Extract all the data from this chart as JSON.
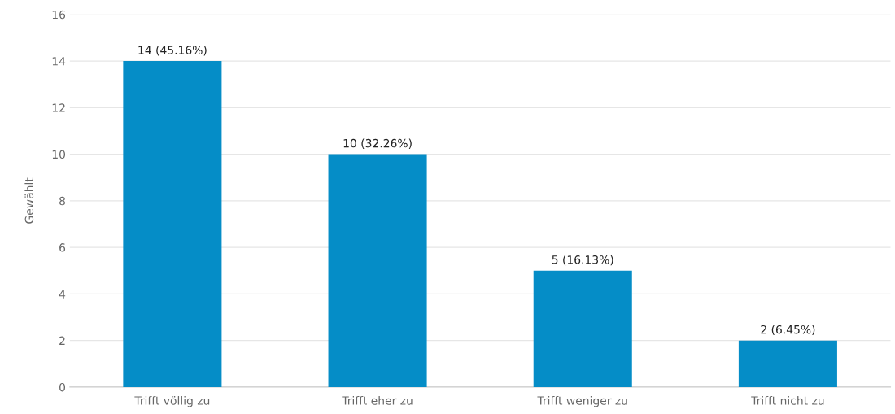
{
  "chart_data": {
    "type": "bar",
    "ylabel": "Gewählt",
    "categories": [
      "Trifft völlig zu",
      "Trifft eher zu",
      "Trifft weniger zu",
      "Trifft nicht zu"
    ],
    "values": [
      14,
      10,
      5,
      2
    ],
    "value_labels": [
      "14 (45.16%)",
      "10 (32.26%)",
      "5 (16.13%)",
      "2 (6.45%)"
    ],
    "color": "#058dc7",
    "ylim": [
      0,
      16
    ],
    "yticks": [
      0,
      2,
      4,
      6,
      8,
      10,
      12,
      14,
      16
    ],
    "grid": "y",
    "legend": false
  }
}
